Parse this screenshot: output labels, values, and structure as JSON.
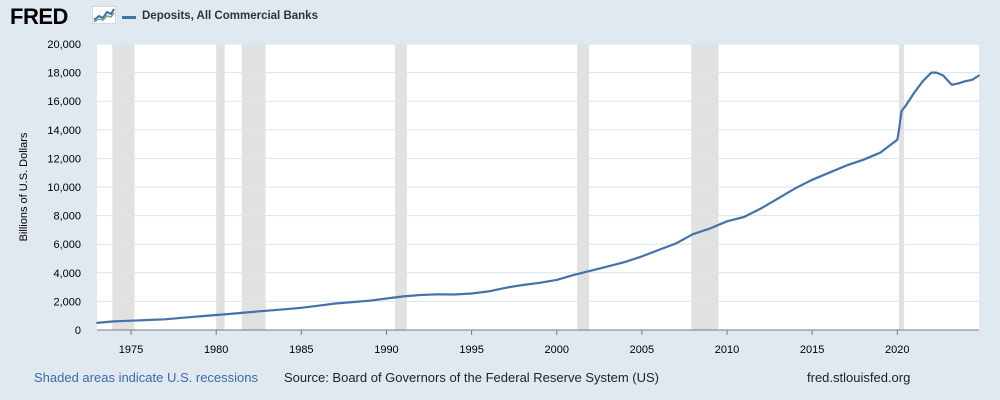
{
  "brand": {
    "logo_text": "FRED",
    "logo_icon": "fred-chart-icon"
  },
  "legend": {
    "series_label": "Deposits, All Commercial Banks",
    "color": "#4572a7"
  },
  "footer": {
    "recession_note": "Shaded areas indicate U.S. recessions",
    "source": "Source: Board of Governors of the Federal Reserve System (US)",
    "site": "fred.stlouisfed.org"
  },
  "colors": {
    "background": "#e1e9f0",
    "plot_background": "#ffffff",
    "series_line": "#4572a7",
    "recession_shade": "#e1e1e1",
    "gridline": "#dde3ea"
  },
  "chart_data": {
    "type": "line",
    "title": "",
    "xlabel": "",
    "ylabel": "Billions of U.S. Dollars",
    "x_ticks": [
      "1975",
      "1980",
      "1985",
      "1990",
      "1995",
      "2000",
      "2005",
      "2010",
      "2015",
      "2020"
    ],
    "y_ticks": [
      "0",
      "2,000",
      "4,000",
      "6,000",
      "8,000",
      "10,000",
      "12,000",
      "14,000",
      "16,000",
      "18,000",
      "20,000"
    ],
    "xlim": [
      1973.0,
      2024.8
    ],
    "ylim": [
      0,
      20000
    ],
    "grid": "horizontal",
    "legend_position": "top-left",
    "recessions": [
      [
        1973.9,
        1975.2
      ],
      [
        1980.0,
        1980.5
      ],
      [
        1981.5,
        1982.9
      ],
      [
        1990.5,
        1991.2
      ],
      [
        2001.2,
        2001.9
      ],
      [
        2007.9,
        2009.5
      ],
      [
        2020.1,
        2020.4
      ]
    ],
    "series": [
      {
        "name": "Deposits, All Commercial Banks",
        "x": [
          1973.0,
          1974.0,
          1975.0,
          1976.0,
          1977.0,
          1978.0,
          1979.0,
          1980.0,
          1981.0,
          1982.0,
          1983.0,
          1984.0,
          1985.0,
          1986.0,
          1987.0,
          1988.0,
          1989.0,
          1990.0,
          1991.0,
          1992.0,
          1993.0,
          1994.0,
          1995.0,
          1996.0,
          1997.0,
          1998.0,
          1999.0,
          2000.0,
          2001.0,
          2002.0,
          2003.0,
          2004.0,
          2005.0,
          2006.0,
          2007.0,
          2008.0,
          2009.0,
          2010.0,
          2011.0,
          2012.0,
          2013.0,
          2014.0,
          2015.0,
          2016.0,
          2017.0,
          2018.0,
          2019.0,
          2020.0,
          2020.1,
          2020.25,
          2020.5,
          2021.0,
          2021.5,
          2022.0,
          2022.3,
          2022.7,
          2023.0,
          2023.2,
          2023.6,
          2024.0,
          2024.4,
          2024.8
        ],
        "values": [
          500,
          600,
          650,
          700,
          750,
          850,
          950,
          1050,
          1150,
          1250,
          1350,
          1450,
          1550,
          1700,
          1850,
          1950,
          2050,
          2200,
          2350,
          2450,
          2500,
          2480,
          2550,
          2700,
          2950,
          3150,
          3300,
          3500,
          3850,
          4150,
          4450,
          4750,
          5150,
          5600,
          6050,
          6700,
          7100,
          7600,
          7900,
          8500,
          9200,
          9900,
          10500,
          11000,
          11500,
          11900,
          12400,
          13300,
          14000,
          15300,
          15700,
          16600,
          17400,
          18000,
          18000,
          17800,
          17400,
          17150,
          17250,
          17400,
          17500,
          17800
        ]
      }
    ]
  }
}
